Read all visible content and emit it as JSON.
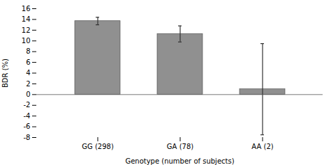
{
  "chart_data": {
    "type": "bar",
    "categories": [
      "GG (298)",
      "GA (78)",
      "AA (2)"
    ],
    "values": [
      13.7,
      11.3,
      1.0
    ],
    "errors": [
      0.7,
      1.5,
      8.5
    ],
    "color": "#909090",
    "xlabel": "Genotype (number of subjects)",
    "ylabel": "BDR (%)",
    "ylim": [
      -8,
      16
    ],
    "yticks": [
      -8,
      -6,
      -4,
      -2,
      0,
      2,
      4,
      6,
      8,
      10,
      12,
      14,
      16
    ],
    "grid": false
  }
}
